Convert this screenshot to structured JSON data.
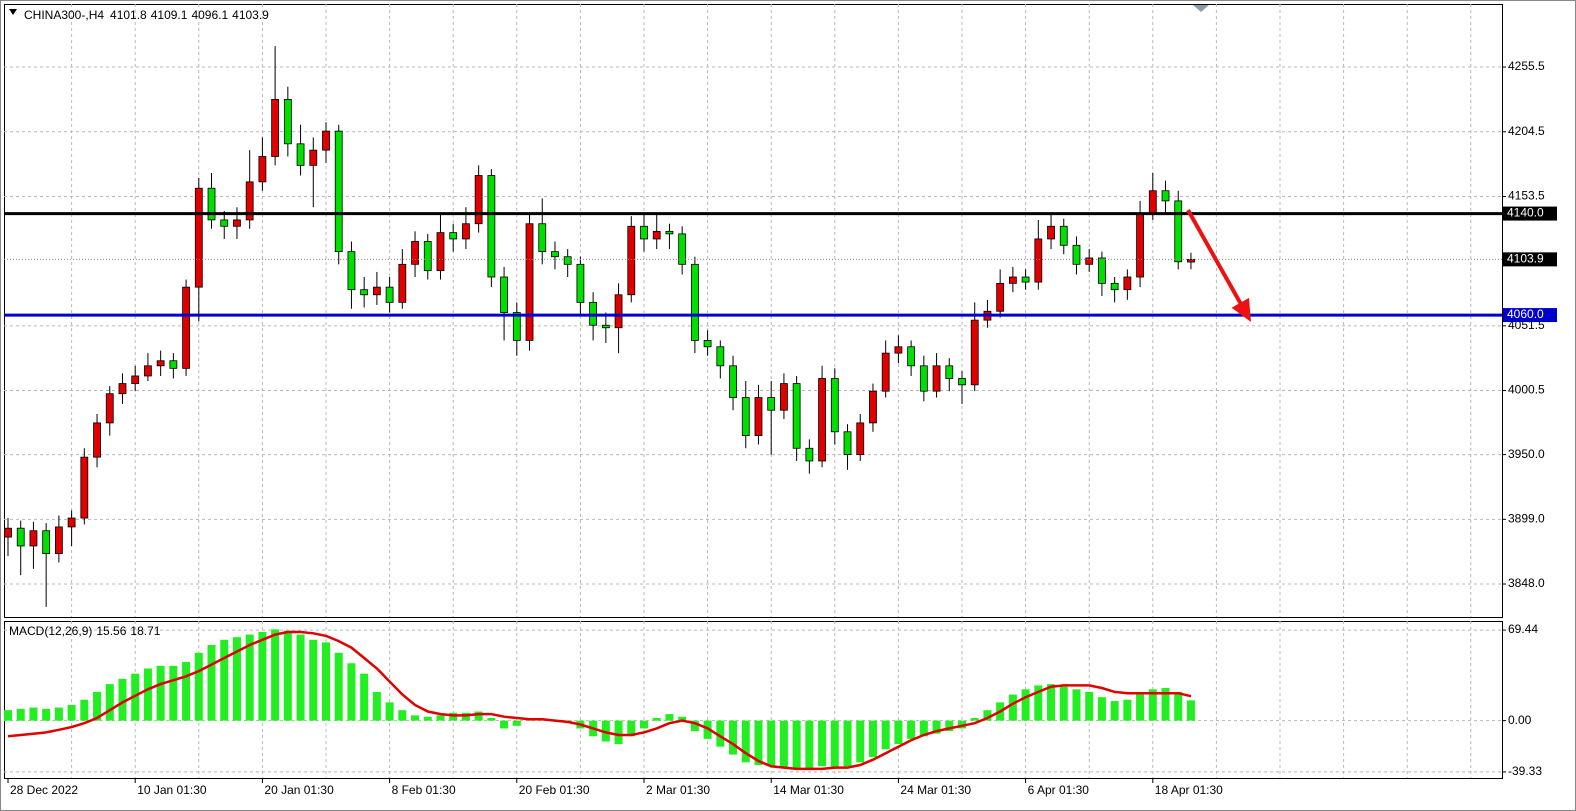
{
  "chart_data": [
    {
      "type": "candlestick",
      "title": "CHINA300-,H4",
      "categories": [
        "28 Dec 2022",
        null,
        null,
        null,
        null,
        null,
        null,
        null,
        null,
        null,
        "10 Jan 01:30",
        null,
        null,
        null,
        null,
        null,
        null,
        null,
        null,
        null,
        "20 Jan 01:30",
        null,
        null,
        null,
        null,
        null,
        null,
        null,
        null,
        null,
        "8 Feb 01:30",
        null,
        null,
        null,
        null,
        null,
        null,
        null,
        null,
        null,
        "20 Feb 01:30",
        null,
        null,
        null,
        null,
        null,
        null,
        null,
        null,
        null,
        "2 Mar 01:30",
        null,
        null,
        null,
        null,
        null,
        null,
        null,
        null,
        null,
        "14 Mar 01:30",
        null,
        null,
        null,
        null,
        null,
        null,
        null,
        null,
        null,
        "24 Mar 01:30",
        null,
        null,
        null,
        null,
        null,
        null,
        null,
        null,
        null,
        "6 Apr 01:30",
        null,
        null,
        null,
        null,
        null,
        null,
        null,
        null,
        null,
        "18 Apr 01:30",
        null,
        null,
        null
      ],
      "open": [
        3885,
        3892,
        3878,
        3890,
        3872,
        3893,
        3900,
        3948,
        3975,
        3998,
        4006,
        4012,
        4020,
        4024,
        4018,
        4082,
        4160,
        4135,
        4130,
        4135,
        4165,
        4185,
        4230,
        4195,
        4178,
        4190,
        4205,
        4110,
        4080,
        4076,
        4082,
        4070,
        4100,
        4118,
        4095,
        4125,
        4120,
        4132,
        4170,
        4090,
        4062,
        4040,
        4132,
        4110,
        4106,
        4100,
        4070,
        4052,
        4050,
        4076,
        4130,
        4120,
        4126,
        4124,
        4100,
        4040,
        4035,
        4020,
        3995,
        3965,
        3995,
        3985,
        4006,
        3955,
        3945,
        4010,
        3968,
        3950,
        3975,
        4000,
        4030,
        4035,
        4020,
        4000,
        4020,
        4010,
        4005,
        4056,
        4063,
        4085,
        4090,
        4086,
        4120,
        4130,
        4115,
        4100,
        4105,
        4085,
        4080,
        4090,
        4140,
        4158,
        4150,
        4101.8
      ],
      "high": [
        3900,
        3898,
        3897,
        3896,
        3902,
        3906,
        3955,
        3982,
        4004,
        4014,
        4020,
        4030,
        4032,
        4030,
        4088,
        4168,
        4172,
        4142,
        4145,
        4190,
        4200,
        4272,
        4240,
        4210,
        4200,
        4212,
        4210,
        4118,
        4090,
        4094,
        4090,
        4112,
        4126,
        4124,
        4140,
        4132,
        4145,
        4178,
        4175,
        4098,
        4070,
        4140,
        4152,
        4118,
        4112,
        4106,
        4078,
        4062,
        4085,
        4138,
        4140,
        4140,
        4132,
        4130,
        4106,
        4048,
        4040,
        4028,
        4008,
        4005,
        4008,
        4014,
        4012,
        3962,
        4020,
        4018,
        3974,
        3982,
        4006,
        4040,
        4044,
        4040,
        4028,
        4030,
        4026,
        4016,
        4070,
        4072,
        4096,
        4098,
        4096,
        4135,
        4140,
        4136,
        4122,
        4112,
        4110,
        4090,
        4096,
        4150,
        4172,
        4166,
        4158,
        4109.1
      ],
      "low": [
        3870,
        3855,
        3860,
        3830,
        3865,
        3878,
        3895,
        3940,
        3965,
        3990,
        4000,
        4008,
        4012,
        4010,
        4012,
        4055,
        4128,
        4120,
        4120,
        4128,
        4158,
        4178,
        4185,
        4170,
        4145,
        4180,
        4100,
        4065,
        4066,
        4068,
        4062,
        4065,
        4090,
        4088,
        4088,
        4110,
        4112,
        4125,
        4082,
        4040,
        4028,
        4032,
        4100,
        4096,
        4090,
        4060,
        4040,
        4038,
        4030,
        4070,
        4110,
        4112,
        4112,
        4092,
        4030,
        4028,
        4010,
        3985,
        3955,
        3958,
        3950,
        3978,
        3945,
        3935,
        3940,
        3958,
        3938,
        3945,
        3968,
        3995,
        4022,
        4012,
        3992,
        3995,
        4000,
        3990,
        4000,
        4050,
        4058,
        4078,
        4080,
        4080,
        4112,
        4108,
        4092,
        4094,
        4075,
        4070,
        4072,
        4082,
        4135,
        4140,
        4096,
        4096.1
      ],
      "close": [
        3892,
        3878,
        3890,
        3872,
        3893,
        3900,
        3948,
        3975,
        3998,
        4006,
        4012,
        4020,
        4024,
        4018,
        4082,
        4160,
        4135,
        4130,
        4135,
        4165,
        4185,
        4230,
        4195,
        4178,
        4190,
        4205,
        4110,
        4080,
        4076,
        4082,
        4070,
        4100,
        4118,
        4095,
        4125,
        4120,
        4132,
        4170,
        4090,
        4062,
        4040,
        4132,
        4110,
        4106,
        4100,
        4070,
        4052,
        4050,
        4076,
        4130,
        4120,
        4126,
        4124,
        4100,
        4040,
        4035,
        4020,
        3995,
        3965,
        3995,
        3985,
        4006,
        3955,
        3945,
        4010,
        3968,
        3950,
        3975,
        4000,
        4030,
        4035,
        4020,
        4000,
        4020,
        4010,
        4005,
        4056,
        4063,
        4085,
        4090,
        4086,
        4120,
        4130,
        4115,
        4100,
        4105,
        4085,
        4080,
        4090,
        4140,
        4158,
        4150,
        4102,
        4103.9
      ],
      "up_color": "#e00000",
      "down_color": "#00e000",
      "ylim": [
        3822,
        4305.2
      ],
      "yticks": [
        4255.5,
        4204.5,
        4153.5,
        4051.5,
        4000.5,
        {
          "value": 3950,
          "label": "3950.0"
        },
        {
          "value": 3899,
          "label": "3899.0"
        },
        {
          "value": 3848,
          "label": "3848.0"
        }
      ],
      "hlines": [
        {
          "value": 4140,
          "label": "4140.0",
          "color": "#000000"
        },
        {
          "value": 4060,
          "label": "4060.0",
          "color": "#0000cc"
        }
      ],
      "grid": true
    },
    {
      "type": "macd",
      "title": "MACD(12,26,9)",
      "histogram": {
        "color": "#22ee22",
        "values": [
          8,
          9,
          10,
          9,
          10,
          12,
          16,
          22,
          28,
          32,
          36,
          40,
          42,
          42,
          45,
          52,
          58,
          62,
          64,
          66,
          68,
          70,
          69,
          66,
          62,
          60,
          52,
          44,
          36,
          22,
          14,
          8,
          4,
          3,
          4,
          6,
          6,
          7,
          2,
          -6,
          -4,
          2,
          1,
          0,
          -2,
          -6,
          -12,
          -16,
          -18,
          -12,
          -6,
          2,
          5,
          3,
          -8,
          -14,
          -20,
          -26,
          -32,
          -34,
          -35,
          -36,
          -37,
          -38,
          -35,
          -36,
          -35,
          -32,
          -28,
          -22,
          -18,
          -14,
          -12,
          -10,
          -8,
          -6,
          2,
          8,
          14,
          20,
          24,
          27,
          28,
          26,
          24,
          22,
          18,
          15,
          16,
          20,
          24,
          25,
          22,
          15.56
        ]
      },
      "signal": {
        "color": "#e00000",
        "values": [
          -12,
          -11,
          -10,
          -9,
          -7,
          -5,
          -2,
          2,
          8,
          14,
          19,
          24,
          28,
          31,
          34,
          38,
          43,
          48,
          53,
          58,
          62,
          66,
          68,
          68,
          67,
          65,
          61,
          56,
          48,
          40,
          30,
          20,
          12,
          7,
          5,
          4,
          4,
          5,
          5,
          3,
          2,
          1,
          1,
          0,
          -1,
          -3,
          -6,
          -9,
          -11,
          -11,
          -9,
          -6,
          -2,
          0,
          -2,
          -6,
          -12,
          -18,
          -25,
          -31,
          -35,
          -36,
          -37,
          -37,
          -37,
          -36,
          -36,
          -34,
          -30,
          -25,
          -20,
          -15,
          -11,
          -8,
          -6,
          -4,
          -2,
          2,
          7,
          13,
          18,
          22,
          26,
          27,
          27,
          27,
          25,
          22,
          21,
          21,
          21,
          21,
          21,
          18.71
        ]
      },
      "ylim": [
        -44,
        76.4
      ],
      "yticks": [
        69.44,
        {
          "value": 0,
          "label": "0.00"
        },
        -39.33
      ],
      "grid": true
    }
  ]
}
